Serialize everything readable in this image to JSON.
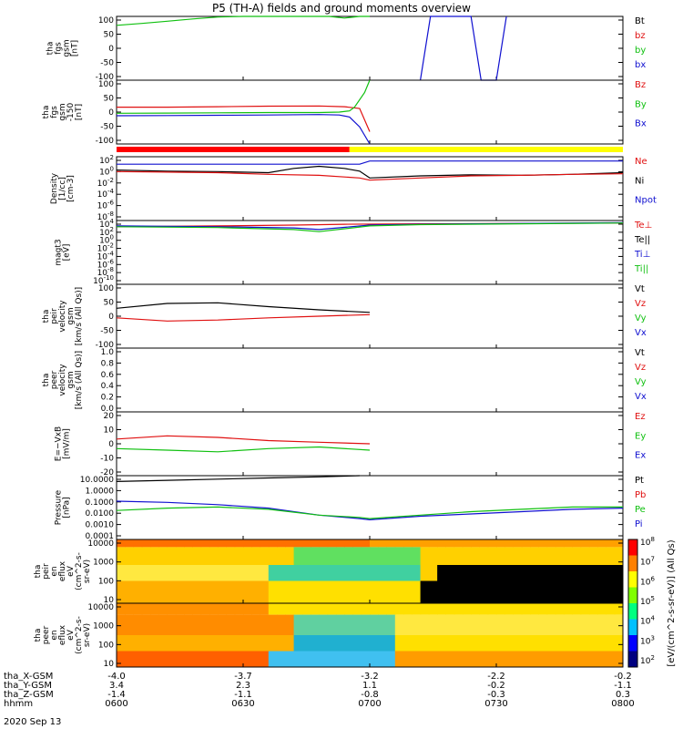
{
  "title": "P5 (TH-A) fields and ground moments overview",
  "colors": {
    "black": "#000000",
    "red": "#e01010",
    "green": "#10c010",
    "blue": "#1010d0",
    "yellow": "#f0e000",
    "strip_red": "#ff0000",
    "strip_yellow": "#ffff00"
  },
  "x_axis": {
    "rows": [
      {
        "label": "tha_X-GSM",
        "values": [
          "-4.0",
          "-3.7",
          "-3.2",
          "-2.2",
          "-0.2"
        ]
      },
      {
        "label": "tha_Y-GSM",
        "values": [
          "3.4",
          "2.3",
          "1.1",
          "-0.2",
          "-1.1"
        ]
      },
      {
        "label": "tha_Z-GSM",
        "values": [
          "-1.4",
          "-1.1",
          "-0.8",
          "-0.3",
          "0.3"
        ]
      },
      {
        "label": "hhmm",
        "values": [
          "0600",
          "0630",
          "0700",
          "0730",
          "0800"
        ]
      }
    ],
    "date": "2020 Sep 13"
  },
  "chart_data": [
    {
      "type": "line",
      "panel": "fgs_gsm",
      "ylabel": [
        "tha",
        "fgs",
        "gsm",
        "[nT]"
      ],
      "yticks": [
        "100",
        "50",
        "0",
        "-50",
        "-100"
      ],
      "ylim": [
        -100,
        100
      ],
      "legend": [
        {
          "name": "Bt",
          "color": "black"
        },
        {
          "name": "bz",
          "color": "red"
        },
        {
          "name": "by",
          "color": "green"
        },
        {
          "name": "bx",
          "color": "blue"
        }
      ],
      "series": [
        {
          "name": "by",
          "color": "green",
          "x": [
            0,
            5,
            10,
            15,
            20,
            25,
            30,
            38,
            42,
            45,
            48,
            50
          ],
          "y": [
            72,
            78,
            85,
            92,
            98,
            103,
            108,
            110,
            108,
            95,
            110,
            120
          ]
        },
        {
          "name": "bx",
          "color": "blue",
          "x": [
            60,
            62,
            70,
            72,
            75,
            77
          ],
          "y": [
            -100,
            100,
            100,
            -100,
            -100,
            100
          ]
        }
      ]
    },
    {
      "type": "line",
      "panel": "fgs_gsm_zoom",
      "ylabel": [
        "tha",
        "fgs",
        "gsm",
        "-150",
        "[nT]"
      ],
      "yticks": [
        "100",
        "50",
        "0",
        "-50",
        "-100"
      ],
      "ylim": [
        -130,
        130
      ],
      "legend": [
        {
          "name": "Bz",
          "color": "red"
        },
        {
          "name": "By",
          "color": "green"
        },
        {
          "name": "Bx",
          "color": "blue"
        }
      ],
      "series": [
        {
          "name": "Bz",
          "color": "red",
          "x": [
            0,
            10,
            20,
            30,
            40,
            45,
            48,
            50
          ],
          "y": [
            20,
            20,
            22,
            24,
            25,
            22,
            15,
            -80
          ]
        },
        {
          "name": "By",
          "color": "green",
          "x": [
            0,
            10,
            20,
            30,
            40,
            44,
            46,
            47,
            49,
            50
          ],
          "y": [
            -5,
            -4,
            -3,
            -2,
            -2,
            0,
            5,
            20,
            80,
            130
          ]
        },
        {
          "name": "Bx",
          "color": "blue",
          "x": [
            0,
            10,
            20,
            30,
            40,
            44,
            46,
            48,
            50
          ],
          "y": [
            -15,
            -14,
            -13,
            -12,
            -10,
            -12,
            -20,
            -60,
            -130
          ]
        }
      ]
    },
    {
      "type": "line",
      "panel": "density",
      "ylabel": [
        "Density",
        "[1/cc]",
        "[cm-3]"
      ],
      "yticks": [
        "10^2",
        "10^0",
        "10^-2",
        "10^-4",
        "10^-6",
        "10^-8"
      ],
      "ylim": [
        -9,
        3
      ],
      "log": true,
      "legend": [
        {
          "name": "Ne",
          "color": "red"
        },
        {
          "name": "Ni",
          "color": "black"
        },
        {
          "name": "Npot",
          "color": "blue"
        }
      ],
      "series": [
        {
          "name": "Ni",
          "color": "black",
          "x": [
            0,
            10,
            20,
            30,
            35,
            40,
            45,
            48,
            50,
            60,
            70,
            80,
            90,
            100
          ],
          "y": [
            0.5,
            0.3,
            0.2,
            0,
            0.8,
            1.2,
            0.8,
            0.3,
            -1,
            -0.6,
            -0.4,
            -0.5,
            -0.3,
            0
          ]
        },
        {
          "name": "Ne",
          "color": "red",
          "x": [
            0,
            10,
            20,
            30,
            40,
            48,
            50,
            60,
            70,
            80,
            90,
            100
          ],
          "y": [
            0.2,
            0.1,
            0,
            -0.3,
            -0.5,
            -1,
            -1.4,
            -1,
            -0.6,
            -0.5,
            -0.3,
            -0.2
          ]
        },
        {
          "name": "Npot",
          "color": "blue",
          "x": [
            0,
            8,
            48,
            50,
            100
          ],
          "y": [
            1.6,
            1.6,
            1.6,
            2.2,
            2.2
          ]
        }
      ]
    },
    {
      "type": "line",
      "panel": "temperature",
      "ylabel": [
        "magt3",
        "[eV]"
      ],
      "yticks": [
        "10^4",
        "10^2",
        "10^0",
        "10^-2",
        "10^-4",
        "10^-6",
        "10^-8",
        "10^-10"
      ],
      "ylim": [
        -11,
        4.5
      ],
      "log": true,
      "legend": [
        {
          "name": "Te⊥",
          "color": "red"
        },
        {
          "name": "Te||",
          "color": "black"
        },
        {
          "name": "Ti⊥",
          "color": "blue"
        },
        {
          "name": "Ti||",
          "color": "green"
        }
      ],
      "series": [
        {
          "name": "Te⊥",
          "color": "red",
          "x": [
            0,
            20,
            35,
            45,
            60,
            80,
            100
          ],
          "y": [
            3.0,
            3.2,
            3.4,
            3.6,
            3.7,
            3.8,
            3.9
          ]
        },
        {
          "name": "Ti⊥",
          "color": "blue",
          "x": [
            0,
            20,
            35,
            40,
            50,
            60,
            80,
            100
          ],
          "y": [
            3.2,
            3.0,
            2.7,
            2.3,
            3.4,
            3.6,
            3.8,
            4.0
          ]
        },
        {
          "name": "Ti||",
          "color": "green",
          "x": [
            0,
            20,
            35,
            40,
            50,
            60,
            80,
            100
          ],
          "y": [
            3.0,
            2.8,
            2.3,
            1.8,
            3.2,
            3.5,
            3.7,
            3.9
          ]
        }
      ]
    },
    {
      "type": "line",
      "panel": "peir_velocity",
      "ylabel": [
        "tha",
        "peir",
        "velocity",
        "gsm",
        "[km/s (All Qs)]"
      ],
      "yticks": [
        "100",
        "50",
        "0",
        "-50",
        "-100"
      ],
      "ylim": [
        -100,
        100
      ],
      "legend": [
        {
          "name": "Vt",
          "color": "black"
        },
        {
          "name": "Vz",
          "color": "red"
        },
        {
          "name": "Vy",
          "color": "green"
        },
        {
          "name": "Vx",
          "color": "blue"
        }
      ],
      "series": [
        {
          "name": "Vt",
          "color": "black",
          "x": [
            0,
            10,
            20,
            30,
            40,
            50
          ],
          "y": [
            25,
            40,
            42,
            30,
            20,
            12
          ]
        },
        {
          "name": "Vz",
          "color": "red",
          "x": [
            0,
            10,
            20,
            30,
            40,
            50
          ],
          "y": [
            -5,
            -15,
            -12,
            -5,
            0,
            5
          ]
        }
      ]
    },
    {
      "type": "line",
      "panel": "peer_velocity",
      "ylabel": [
        "tha",
        "peer",
        "velocity",
        "gsm",
        "[km/s (All Qs)]"
      ],
      "yticks": [
        "1.0",
        "0.8",
        "0.6",
        "0.4",
        "0.2",
        "0.0"
      ],
      "ylim": [
        0,
        1
      ],
      "legend": [
        {
          "name": "Vt",
          "color": "black"
        },
        {
          "name": "Vz",
          "color": "red"
        },
        {
          "name": "Vy",
          "color": "green"
        },
        {
          "name": "Vx",
          "color": "blue"
        }
      ],
      "series": []
    },
    {
      "type": "line",
      "panel": "efield",
      "ylabel": [
        "E=−VxB",
        "[mV/m]"
      ],
      "yticks": [
        "20",
        "10",
        "0",
        "-10",
        "-20"
      ],
      "ylim": [
        -20,
        20
      ],
      "legend": [
        {
          "name": "Ez",
          "color": "red"
        },
        {
          "name": "Ey",
          "color": "green"
        },
        {
          "name": "Ex",
          "color": "blue"
        }
      ],
      "series": [
        {
          "name": "Ez",
          "color": "red",
          "x": [
            0,
            10,
            20,
            30,
            40,
            50
          ],
          "y": [
            3,
            5,
            4,
            2,
            1,
            0
          ]
        },
        {
          "name": "Ey",
          "color": "green",
          "x": [
            0,
            10,
            20,
            30,
            40,
            50
          ],
          "y": [
            -3,
            -4,
            -5,
            -3,
            -2,
            -4
          ]
        }
      ]
    },
    {
      "type": "line",
      "panel": "pressure",
      "ylabel": [
        "Pressure",
        "[nPa]"
      ],
      "yticks": [
        "10.0000",
        "1.0000",
        "0.1000",
        "0.0100",
        "0.0010",
        "0.0001"
      ],
      "ylim": [
        -4,
        1.5
      ],
      "log": true,
      "legend": [
        {
          "name": "Pt",
          "color": "black"
        },
        {
          "name": "Pb",
          "color": "red"
        },
        {
          "name": "Pe",
          "color": "green"
        },
        {
          "name": "Pi",
          "color": "blue"
        }
      ],
      "series": [
        {
          "name": "Pt",
          "color": "black",
          "x": [
            0,
            10,
            20,
            30,
            40,
            48
          ],
          "y": [
            1.0,
            1.1,
            1.2,
            1.3,
            1.4,
            1.5
          ]
        },
        {
          "name": "Pi",
          "color": "blue",
          "x": [
            0,
            10,
            20,
            30,
            40,
            48,
            50,
            60,
            70,
            80,
            90,
            100
          ],
          "y": [
            -0.7,
            -0.8,
            -1.0,
            -1.3,
            -1.9,
            -2.2,
            -2.3,
            -2.0,
            -1.8,
            -1.6,
            -1.4,
            -1.3
          ]
        },
        {
          "name": "Pe",
          "color": "green",
          "x": [
            0,
            10,
            20,
            30,
            40,
            48,
            50,
            60,
            70,
            80,
            90,
            100
          ],
          "y": [
            -1.5,
            -1.3,
            -1.2,
            -1.4,
            -1.9,
            -2.1,
            -2.2,
            -1.9,
            -1.6,
            -1.4,
            -1.2,
            -1.2
          ]
        }
      ]
    },
    {
      "type": "heatmap",
      "panel": "peir_spectrogram",
      "ylabel": [
        "tha",
        "peir",
        "en",
        "eflux",
        "eV",
        "(cm^2-s-",
        "sr-eV)"
      ],
      "yticks": [
        "10000",
        "1000",
        "100",
        "10"
      ]
    },
    {
      "type": "heatmap",
      "panel": "peer_spectrogram",
      "ylabel": [
        "tha",
        "peer",
        "en",
        "eflux",
        "eV",
        "(cm^2-s-",
        "sr-eV)"
      ],
      "yticks": [
        "10000",
        "1000",
        "100",
        "10"
      ]
    }
  ],
  "colorbar": {
    "ticks": [
      "10^8",
      "10^7",
      "10^6",
      "10^5",
      "10^4",
      "10^3",
      "10^2"
    ],
    "label": "[eV/(cm^2-s-sr-eV)] (All Qs)"
  }
}
